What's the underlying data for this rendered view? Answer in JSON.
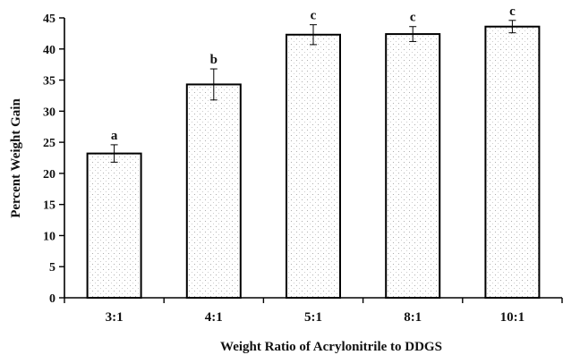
{
  "chart_data": {
    "type": "bar",
    "title": "",
    "xlabel": "Weight Ratio of Acrylonitrile to DDGS",
    "ylabel": "Percent Weight  Gain",
    "ylim": [
      0,
      45
    ],
    "yticks": [
      0,
      5,
      10,
      15,
      20,
      25,
      30,
      35,
      40,
      45
    ],
    "grid": false,
    "legend": "none",
    "categories": [
      "3:1",
      "4:1",
      "5:1",
      "8:1",
      "10:1"
    ],
    "values": [
      23.2,
      34.3,
      42.3,
      42.4,
      43.6
    ],
    "error": [
      1.4,
      2.5,
      1.6,
      1.2,
      1.0
    ],
    "significance_labels": [
      "a",
      "b",
      "c",
      "c",
      "c"
    ],
    "bar_fill": "#ffffff",
    "bar_stroke": "#000000",
    "bar_pattern": "dotted"
  }
}
